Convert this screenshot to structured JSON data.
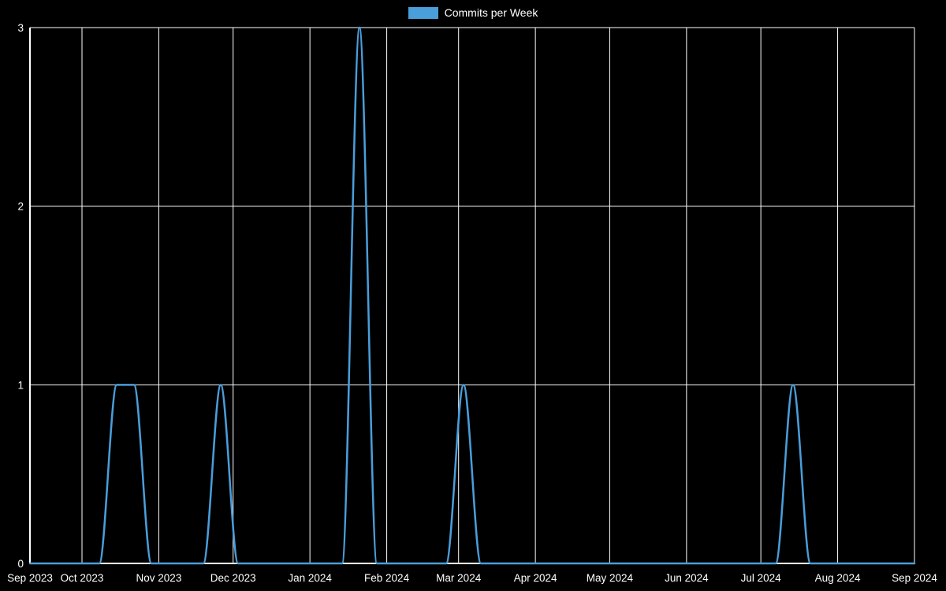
{
  "chart_data": {
    "type": "line",
    "legend_label": "Commits per Week",
    "legend_position": "top",
    "grid": true,
    "ylim": [
      0,
      3
    ],
    "y_ticks": [
      0,
      1,
      2,
      3
    ],
    "x_ticks": [
      {
        "label": "Sep 2023",
        "date": "2023-09-10"
      },
      {
        "label": "Oct 2023",
        "date": "2023-10-01"
      },
      {
        "label": "Nov 2023",
        "date": "2023-11-01"
      },
      {
        "label": "Dec 2023",
        "date": "2023-12-01"
      },
      {
        "label": "Jan 2024",
        "date": "2024-01-01"
      },
      {
        "label": "Feb 2024",
        "date": "2024-02-01"
      },
      {
        "label": "Mar 2024",
        "date": "2024-03-01"
      },
      {
        "label": "Apr 2024",
        "date": "2024-04-01"
      },
      {
        "label": "May 2024",
        "date": "2024-05-01"
      },
      {
        "label": "Jun 2024",
        "date": "2024-06-01"
      },
      {
        "label": "Jul 2024",
        "date": "2024-07-01"
      },
      {
        "label": "Aug 2024",
        "date": "2024-08-01"
      },
      {
        "label": "Sep 2024",
        "date": "2024-09-01"
      }
    ],
    "x": [
      "2023-09-10",
      "2023-09-17",
      "2023-09-24",
      "2023-10-01",
      "2023-10-08",
      "2023-10-15",
      "2023-10-22",
      "2023-10-29",
      "2023-11-05",
      "2023-11-12",
      "2023-11-19",
      "2023-11-26",
      "2023-12-03",
      "2023-12-10",
      "2023-12-17",
      "2023-12-24",
      "2023-12-31",
      "2024-01-07",
      "2024-01-14",
      "2024-01-21",
      "2024-01-28",
      "2024-02-04",
      "2024-02-11",
      "2024-02-18",
      "2024-02-25",
      "2024-03-03",
      "2024-03-10",
      "2024-03-17",
      "2024-03-24",
      "2024-03-31",
      "2024-04-07",
      "2024-04-14",
      "2024-04-21",
      "2024-04-28",
      "2024-05-05",
      "2024-05-12",
      "2024-05-19",
      "2024-05-26",
      "2024-06-02",
      "2024-06-09",
      "2024-06-16",
      "2024-06-23",
      "2024-06-30",
      "2024-07-07",
      "2024-07-14",
      "2024-07-21",
      "2024-07-28",
      "2024-08-04",
      "2024-08-11",
      "2024-08-18",
      "2024-08-25",
      "2024-09-01"
    ],
    "values": [
      0,
      0,
      0,
      0,
      0,
      1,
      1,
      0,
      0,
      0,
      0,
      1,
      0,
      0,
      0,
      0,
      0,
      0,
      0,
      3,
      0,
      0,
      0,
      0,
      0,
      1,
      0,
      0,
      0,
      0,
      0,
      0,
      0,
      0,
      0,
      0,
      0,
      0,
      0,
      0,
      0,
      0,
      0,
      0,
      1,
      0,
      0,
      0,
      0,
      0,
      0,
      0
    ],
    "colors": {
      "background": "#000000",
      "text": "#ffffff",
      "grid": "#ffffff",
      "axis": "#ffffff",
      "line": "#4a9eda"
    }
  }
}
